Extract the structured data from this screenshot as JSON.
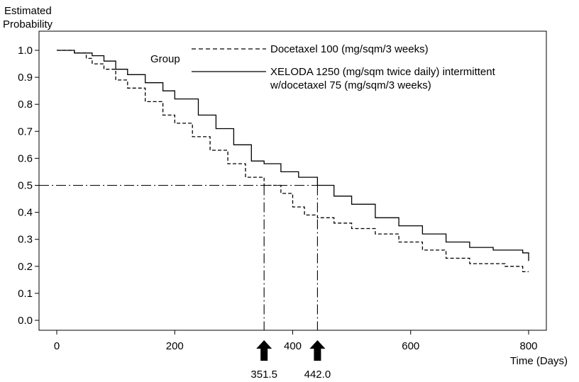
{
  "chart_data": {
    "type": "line",
    "title": "",
    "ylabel": [
      "Estimated",
      "Probability"
    ],
    "xlabel": "Time (Days)",
    "xlim": [
      0,
      800
    ],
    "ylim": [
      0.0,
      1.0
    ],
    "x_ticks": [
      0,
      200,
      400,
      600,
      800
    ],
    "y_ticks": [
      0.0,
      0.1,
      0.2,
      0.3,
      0.4,
      0.5,
      0.6,
      0.7,
      0.8,
      0.9,
      1.0
    ],
    "y_tick_labels": [
      "0.0",
      "0.1",
      "0.2",
      "0.3",
      "0.4",
      "0.5",
      "0.6",
      "0.7",
      "0.8",
      "0.9",
      "1.0"
    ],
    "grid": false,
    "legend": {
      "title": "Group",
      "placement": "top-right",
      "entries": [
        {
          "label_lines": [
            "Docetaxel 100 (mg/sqm/3 weeks)"
          ],
          "style": "dashed"
        },
        {
          "label_lines": [
            "XELODA 1250 (mg/sqm twice daily) intermittent",
            "w/docetaxel 75 (mg/sqm/3 weeks)"
          ],
          "style": "solid"
        }
      ]
    },
    "series": [
      {
        "name": "Docetaxel 100 (mg/sqm/3 weeks)",
        "style": "dashed",
        "x": [
          0,
          30,
          50,
          60,
          80,
          100,
          120,
          150,
          180,
          200,
          230,
          260,
          290,
          320,
          351.5,
          380,
          400,
          420,
          442,
          470,
          500,
          540,
          580,
          620,
          660,
          700,
          760,
          790,
          800
        ],
        "y": [
          1.0,
          0.99,
          0.97,
          0.95,
          0.93,
          0.89,
          0.86,
          0.81,
          0.76,
          0.73,
          0.68,
          0.63,
          0.58,
          0.53,
          0.5,
          0.47,
          0.42,
          0.39,
          0.38,
          0.36,
          0.34,
          0.32,
          0.29,
          0.26,
          0.23,
          0.21,
          0.2,
          0.18,
          0.18
        ]
      },
      {
        "name": "XELODA 1250 (mg/sqm twice daily) intermittent w/docetaxel 75 (mg/sqm/3 weeks)",
        "style": "solid",
        "x": [
          0,
          30,
          60,
          80,
          100,
          120,
          150,
          180,
          200,
          240,
          270,
          300,
          330,
          351.5,
          380,
          410,
          442,
          470,
          500,
          540,
          580,
          620,
          660,
          700,
          740,
          790,
          800
        ],
        "y": [
          1.0,
          0.99,
          0.98,
          0.96,
          0.93,
          0.91,
          0.88,
          0.85,
          0.82,
          0.76,
          0.71,
          0.65,
          0.59,
          0.58,
          0.55,
          0.53,
          0.5,
          0.46,
          0.43,
          0.38,
          0.35,
          0.32,
          0.29,
          0.27,
          0.26,
          0.25,
          0.22
        ]
      }
    ],
    "reference_line": {
      "y": 0.5,
      "style": "dash-dot"
    },
    "median_markers": [
      {
        "x": 351.5,
        "label": "351.5"
      },
      {
        "x": 442.0,
        "label": "442.0"
      }
    ]
  }
}
